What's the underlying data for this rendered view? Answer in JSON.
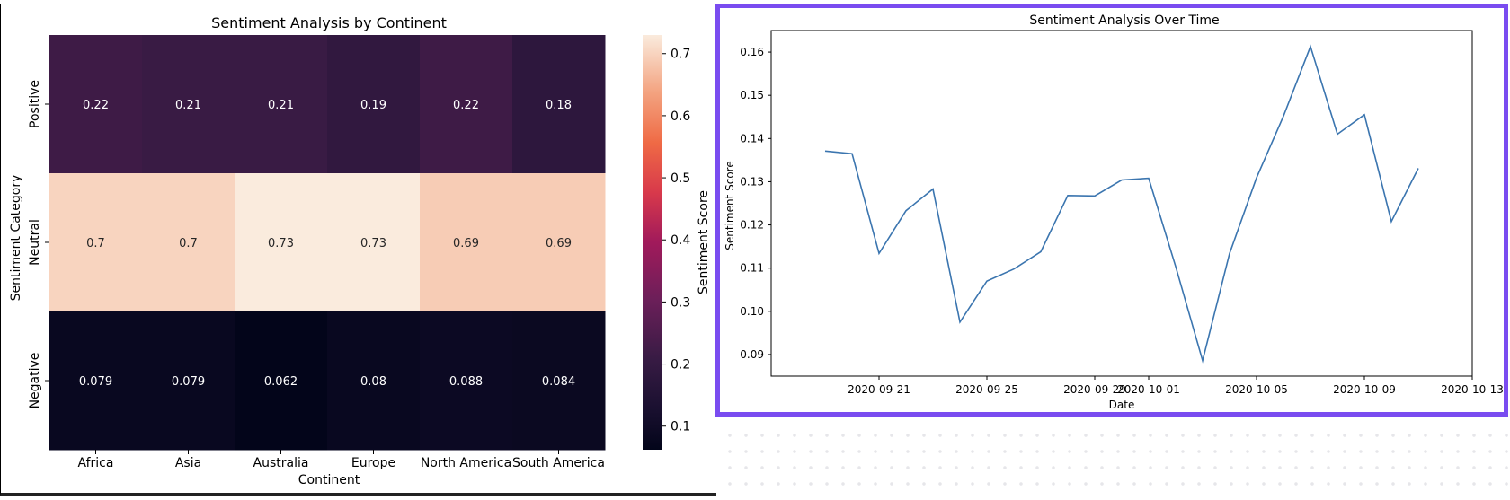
{
  "chart_data": [
    {
      "type": "heatmap",
      "title": "Sentiment Analysis by Continent",
      "xlabel": "Continent",
      "ylabel": "Sentiment Category",
      "colorbar_label": "Sentiment Score",
      "x_categories": [
        "Africa",
        "Asia",
        "Australia",
        "Europe",
        "North America",
        "South America"
      ],
      "y_categories": [
        "Positive",
        "Neutral",
        "Negative"
      ],
      "values": [
        [
          0.22,
          0.21,
          0.21,
          0.19,
          0.22,
          0.18
        ],
        [
          0.7,
          0.7,
          0.73,
          0.73,
          0.69,
          0.69
        ],
        [
          0.079,
          0.079,
          0.062,
          0.08,
          0.088,
          0.084
        ]
      ],
      "colorbar_range": [
        0.062,
        0.73
      ],
      "colorbar_ticks": [
        "0.1",
        "0.2",
        "0.3",
        "0.4",
        "0.5",
        "0.6",
        "0.7"
      ],
      "colormap": "rocket",
      "annotations": true
    },
    {
      "type": "line",
      "title": "Sentiment Analysis Over Time",
      "xlabel": "Date",
      "ylabel": "Sentiment Score",
      "x": [
        "2020-09-19",
        "2020-09-20",
        "2020-09-21",
        "2020-09-22",
        "2020-09-23",
        "2020-09-24",
        "2020-09-25",
        "2020-09-26",
        "2020-09-27",
        "2020-09-28",
        "2020-09-29",
        "2020-09-30",
        "2020-10-01",
        "2020-10-02",
        "2020-10-03",
        "2020-10-04",
        "2020-10-05",
        "2020-10-06",
        "2020-10-07",
        "2020-10-08",
        "2020-10-09",
        "2020-10-10",
        "2020-10-11",
        "2020-10-12"
      ],
      "values": [
        0.1371,
        0.1365,
        0.1134,
        0.1233,
        0.1283,
        0.0975,
        0.107,
        0.1098,
        0.1138,
        0.1268,
        0.1267,
        0.1304,
        0.1308,
        0.1104,
        0.0886,
        0.1134,
        0.1309,
        0.1452,
        0.1613,
        0.141,
        0.1455,
        0.1208,
        0.1331,
        null
      ],
      "x_ticks": [
        "2020-09-21",
        "2020-09-25",
        "2020-09-29",
        "2020-10-01",
        "2020-10-05",
        "2020-10-09",
        "2020-10-13"
      ],
      "y_ticks": [
        "0.09",
        "0.10",
        "0.11",
        "0.12",
        "0.13",
        "0.14",
        "0.15",
        "0.16"
      ],
      "xlim": [
        "2020-09-17",
        "2020-10-13"
      ],
      "ylim": [
        0.085,
        0.165
      ],
      "line_color": "#3b75af",
      "grid": false
    }
  ],
  "colors": {
    "highlight_border": "#7a4cf0"
  }
}
